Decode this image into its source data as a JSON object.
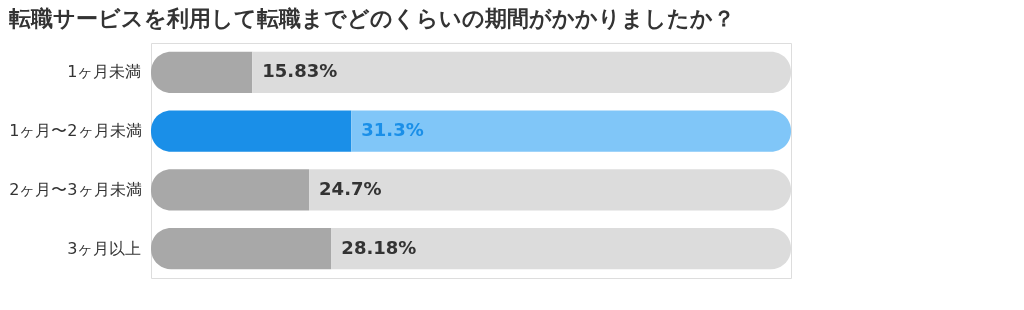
{
  "chart_data": {
    "type": "bar",
    "orientation": "horizontal",
    "stacked": true,
    "title": "転職サービスを利用して転職までどのくらいの期間がかかりましたか？",
    "categories": [
      "1ヶ月未満",
      "1ヶ月〜2ヶ月未満",
      "2ヶ月〜3ヶ月未満",
      "3ヶ月以上"
    ],
    "series": [
      {
        "values": [
          15.83,
          31.3,
          24.7,
          28.18
        ],
        "colors": [
          "#a8a8a8",
          "#1a8fe8",
          "#a8a8a8",
          "#a8a8a8"
        ],
        "value_labels": [
          "15.83%",
          "31.3%",
          "24.7%",
          "28.18%"
        ]
      },
      {
        "values": [
          84.17,
          68.7,
          75.3,
          71.82
        ],
        "colors": [
          "#dcdcdc",
          "#80c6f8",
          "#dcdcdc",
          "#dcdcdc"
        ]
      }
    ],
    "xlim": [
      0,
      100
    ],
    "tick_labels": "y"
  }
}
